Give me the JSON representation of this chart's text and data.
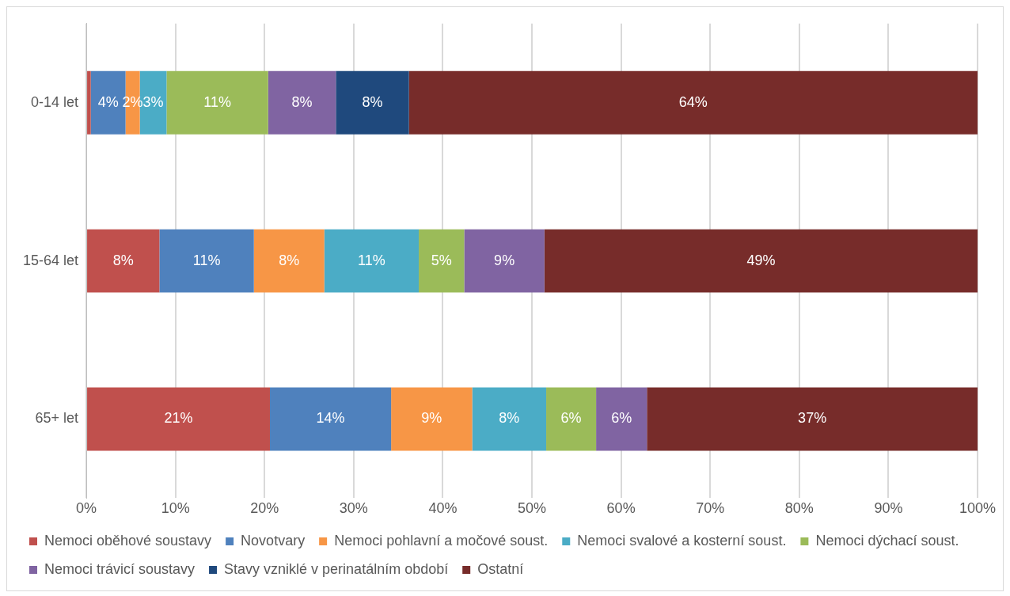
{
  "chart_data": {
    "type": "bar",
    "orientation": "horizontal",
    "stacked": true,
    "categories": [
      "0-14 let",
      "15-64 let",
      "65+ let"
    ],
    "series": [
      {
        "name": "Nemoci oběhové soustavy",
        "color": "#c0504d",
        "values": [
          0.5,
          8.2,
          20.6
        ],
        "value_labels": [
          null,
          "8%",
          "21%"
        ]
      },
      {
        "name": "Novotvary",
        "color": "#4f81bd",
        "values": [
          3.9,
          10.6,
          13.6
        ],
        "value_labels": [
          "4%",
          "11%",
          "14%"
        ]
      },
      {
        "name": "Nemoci pohlavní a močové soust.",
        "color": "#f79646",
        "values": [
          1.6,
          7.9,
          9.1
        ],
        "value_labels": [
          "2%",
          "8%",
          "9%"
        ]
      },
      {
        "name": "Nemoci svalové a kosterní soust.",
        "color": "#4bacc6",
        "values": [
          3.0,
          10.6,
          8.3
        ],
        "value_labels": [
          "3%",
          "11%",
          "8%"
        ]
      },
      {
        "name": "Nemoci dýchací soust.",
        "color": "#9bbb59",
        "values": [
          11.4,
          5.1,
          5.6
        ],
        "value_labels": [
          "11%",
          "5%",
          "6%"
        ]
      },
      {
        "name": "Nemoci trávicí soustavy",
        "color": "#8064a2",
        "values": [
          7.6,
          9.0,
          5.7
        ],
        "value_labels": [
          "8%",
          "9%",
          "6%"
        ]
      },
      {
        "name": "Stavy vzniklé v perinatálním období",
        "color": "#1f497d",
        "values": [
          8.2,
          null,
          null
        ],
        "value_labels": [
          "8%",
          null,
          null
        ]
      },
      {
        "name": "Ostatní",
        "color": "#772c2a",
        "values": [
          63.8,
          48.6,
          37.1
        ],
        "value_labels": [
          "64%",
          "49%",
          "37%"
        ]
      }
    ],
    "xlim": [
      0,
      100
    ],
    "xticks": [
      {
        "value": 0,
        "label": "0%"
      },
      {
        "value": 10,
        "label": "10%"
      },
      {
        "value": 20,
        "label": "20%"
      },
      {
        "value": 30,
        "label": "30%"
      },
      {
        "value": 40,
        "label": "40%"
      },
      {
        "value": 50,
        "label": "50%"
      },
      {
        "value": 60,
        "label": "60%"
      },
      {
        "value": 70,
        "label": "70%"
      },
      {
        "value": 80,
        "label": "80%"
      },
      {
        "value": 90,
        "label": "90%"
      },
      {
        "value": 100,
        "label": "100%"
      }
    ],
    "grid": "x",
    "legend": "bottom"
  }
}
